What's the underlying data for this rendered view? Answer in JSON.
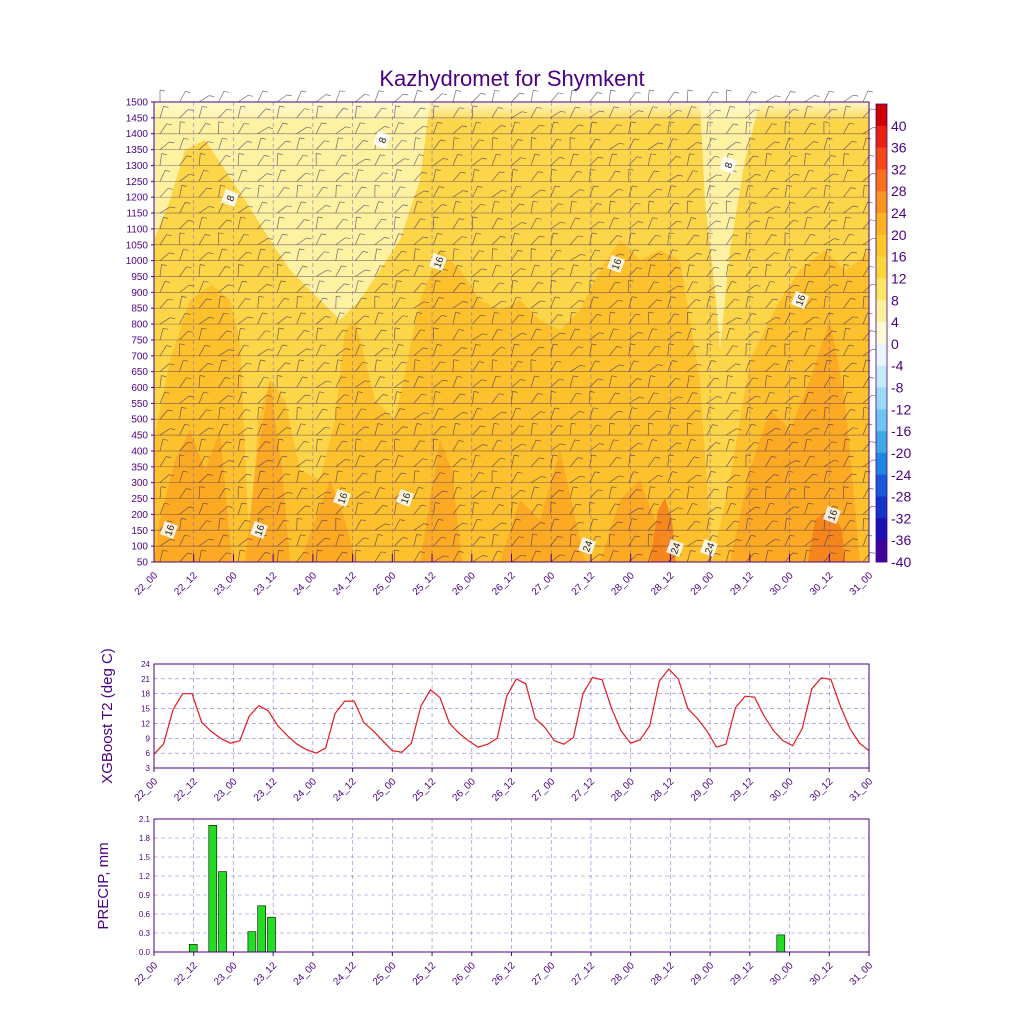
{
  "title": "Kazhydromet for Shymkent",
  "colors": {
    "text": "#4b0082",
    "axis": "#4b0082",
    "t2_line": "#e31a1c",
    "precip_bar": "#22dd22"
  },
  "chart_data": [
    {
      "type": "heatmap",
      "title": "Kazhydromet for Shymkent",
      "xticks": [
        "22_00",
        "22_12",
        "23_00",
        "23_12",
        "24_00",
        "24_12",
        "25_00",
        "25_12",
        "26_00",
        "26_12",
        "27_00",
        "27_12",
        "28_00",
        "28_12",
        "29_00",
        "29_12",
        "30_00",
        "30_12",
        "31_00"
      ],
      "yticks": [
        1500,
        1450,
        1400,
        1350,
        1300,
        1250,
        1200,
        1150,
        1100,
        1050,
        1000,
        950,
        900,
        850,
        800,
        750,
        700,
        650,
        600,
        550,
        500,
        450,
        400,
        350,
        300,
        250,
        200,
        150,
        100,
        50
      ],
      "ylim": [
        50,
        1500
      ],
      "colorbar_labels": [
        "40",
        "36",
        "32",
        "28",
        "24",
        "20",
        "16",
        "12",
        "8",
        "4",
        "0",
        "-4",
        "-8",
        "-12",
        "-16",
        "-20",
        "-24",
        "-28",
        "-32",
        "-36",
        "-40"
      ],
      "colorbar_colors": [
        "#cc0000",
        "#e8220f",
        "#f24a12",
        "#f87017",
        "#fb951c",
        "#fdb41f",
        "#fcc828",
        "#fbd83a",
        "#fbe763",
        "#fcf29b",
        "#fffbd6",
        "#e9f7fc",
        "#c3ebfa",
        "#99dbf5",
        "#6cc6ef",
        "#3fa9e8",
        "#1e86e0",
        "#1759d6",
        "#1234c8",
        "#1a0fb2",
        "#3d0497"
      ],
      "contour_labels": [
        "8",
        "8",
        "8",
        "16",
        "16",
        "16",
        "16",
        "16",
        "16",
        "16",
        "24",
        "24",
        "24",
        "16"
      ]
    },
    {
      "type": "line",
      "ylabel": "XGBoost T2 (deg C)",
      "xticks": [
        "22_00",
        "22_12",
        "23_00",
        "23_12",
        "24_00",
        "24_12",
        "25_00",
        "25_12",
        "26_00",
        "26_12",
        "27_00",
        "27_12",
        "28_00",
        "28_12",
        "29_00",
        "29_12",
        "30_00",
        "30_12",
        "31_00"
      ],
      "yticks": [
        "3",
        "6",
        "9",
        "12",
        "15",
        "18",
        "21",
        "24"
      ],
      "ylim": [
        3,
        24
      ],
      "x_step_hours": 3,
      "series": [
        {
          "values": [
            5.8,
            7.8,
            14.8,
            18,
            18,
            12.2,
            10.4,
            9,
            8,
            8.5,
            13.5,
            15.6,
            14.5,
            11.5,
            9.5,
            7.8,
            6.7,
            6,
            7,
            14,
            16.5,
            16.5,
            12.2,
            10.5,
            8.5,
            6.5,
            6.2,
            8,
            15.5,
            18.8,
            17.2,
            12,
            10,
            8.5,
            7.2,
            7.8,
            9,
            17.5,
            21,
            20,
            13,
            11.2,
            8.5,
            7.8,
            9.2,
            18,
            21.3,
            20.8,
            15,
            10.5,
            8,
            8.7,
            11.5,
            20.5,
            23,
            21,
            15,
            13,
            10.5,
            7.2,
            7.8,
            15.2,
            17.5,
            17.3,
            13.5,
            10.5,
            8.5,
            7.5,
            11,
            19,
            21.2,
            20.9,
            15.5,
            11,
            8,
            6.5
          ]
        }
      ]
    },
    {
      "type": "bar",
      "ylabel": "PRECIP, mm",
      "xticks": [
        "22_00",
        "22_12",
        "23_00",
        "23_12",
        "24_00",
        "24_12",
        "25_00",
        "25_12",
        "26_00",
        "26_12",
        "27_00",
        "27_12",
        "28_00",
        "28_12",
        "29_00",
        "29_12",
        "30_00",
        "30_12",
        "31_00"
      ],
      "yticks": [
        "0.0",
        "0.3",
        "0.6",
        "0.9",
        "1.2",
        "1.5",
        "1.8",
        "2.1"
      ],
      "ylim": [
        0,
        2.1
      ],
      "x_step_hours": 3,
      "series": [
        {
          "values": [
            0,
            0,
            0,
            0,
            0.12,
            0,
            2.0,
            1.27,
            0,
            0,
            0.32,
            0.73,
            0.55,
            0,
            0,
            0,
            0,
            0,
            0,
            0,
            0,
            0,
            0,
            0,
            0,
            0,
            0,
            0,
            0,
            0,
            0,
            0,
            0,
            0,
            0,
            0,
            0,
            0,
            0,
            0,
            0,
            0,
            0,
            0,
            0,
            0,
            0,
            0,
            0,
            0,
            0,
            0,
            0,
            0,
            0,
            0,
            0,
            0,
            0,
            0,
            0,
            0,
            0,
            0,
            0.27,
            0,
            0,
            0,
            0,
            0,
            0,
            0,
            0,
            0
          ]
        }
      ]
    }
  ]
}
